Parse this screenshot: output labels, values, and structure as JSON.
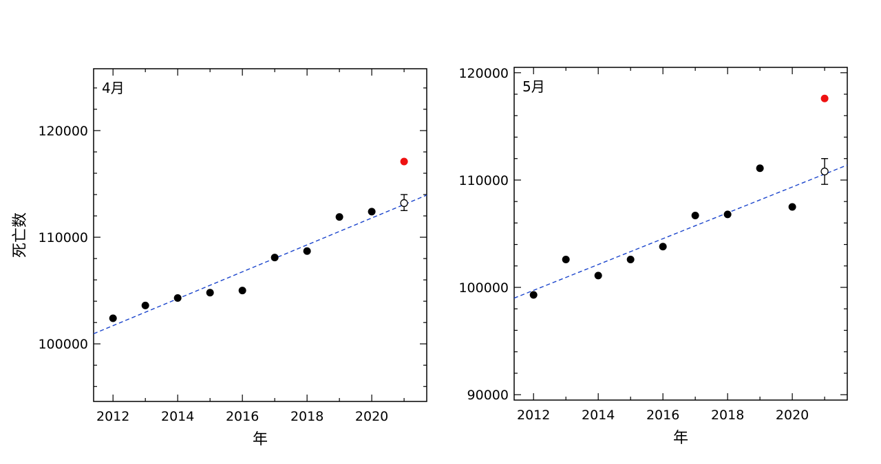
{
  "chart_data": [
    {
      "type": "scatter",
      "title": "4月",
      "xlabel": "年",
      "ylabel": "死亡数",
      "xlim": [
        2011.4,
        2021.7
      ],
      "ylim": [
        94600,
        125800
      ],
      "x_ticks": [
        2012,
        2014,
        2016,
        2018,
        2020
      ],
      "y_ticks": [
        100000,
        110000,
        120000
      ],
      "grid": false,
      "series": [
        {
          "role": "observed",
          "color": "#000000",
          "points": [
            {
              "x": 2012,
              "y": 102400
            },
            {
              "x": 2013,
              "y": 103600
            },
            {
              "x": 2014,
              "y": 104300
            },
            {
              "x": 2015,
              "y": 104800
            },
            {
              "x": 2016,
              "y": 105000
            },
            {
              "x": 2017,
              "y": 108100
            },
            {
              "x": 2018,
              "y": 108700
            },
            {
              "x": 2019,
              "y": 111900
            },
            {
              "x": 2020,
              "y": 112400
            }
          ]
        },
        {
          "role": "observed-highlight",
          "color": "#ee1111",
          "points": [
            {
              "x": 2021,
              "y": 117100
            }
          ]
        },
        {
          "role": "predicted",
          "color": "#000000",
          "points": [
            {
              "x": 2021,
              "y": 113200,
              "err_low": 112500,
              "err_high": 114000
            }
          ]
        },
        {
          "role": "trend",
          "color": "#1a44cc",
          "line": [
            {
              "x": 2011.4,
              "y": 100950
            },
            {
              "x": 2021.7,
              "y": 113950
            }
          ]
        }
      ]
    },
    {
      "type": "scatter",
      "title": "5月",
      "xlabel": "年",
      "ylabel": "",
      "xlim": [
        2011.4,
        2021.7
      ],
      "ylim": [
        89500,
        120500
      ],
      "x_ticks": [
        2012,
        2014,
        2016,
        2018,
        2020
      ],
      "y_ticks": [
        90000,
        100000,
        110000,
        120000
      ],
      "grid": false,
      "series": [
        {
          "role": "observed",
          "color": "#000000",
          "points": [
            {
              "x": 2012,
              "y": 99300
            },
            {
              "x": 2013,
              "y": 102600
            },
            {
              "x": 2014,
              "y": 101100
            },
            {
              "x": 2015,
              "y": 102600
            },
            {
              "x": 2016,
              "y": 103800
            },
            {
              "x": 2017,
              "y": 106700
            },
            {
              "x": 2018,
              "y": 106800
            },
            {
              "x": 2019,
              "y": 111100
            },
            {
              "x": 2020,
              "y": 107500
            }
          ]
        },
        {
          "role": "observed-highlight",
          "color": "#ee1111",
          "points": [
            {
              "x": 2021,
              "y": 117600
            }
          ]
        },
        {
          "role": "predicted",
          "color": "#000000",
          "points": [
            {
              "x": 2021,
              "y": 110800,
              "err_low": 109600,
              "err_high": 112000
            }
          ]
        },
        {
          "role": "trend",
          "color": "#1a44cc",
          "line": [
            {
              "x": 2011.4,
              "y": 99000
            },
            {
              "x": 2021.7,
              "y": 111400
            }
          ]
        }
      ]
    }
  ]
}
